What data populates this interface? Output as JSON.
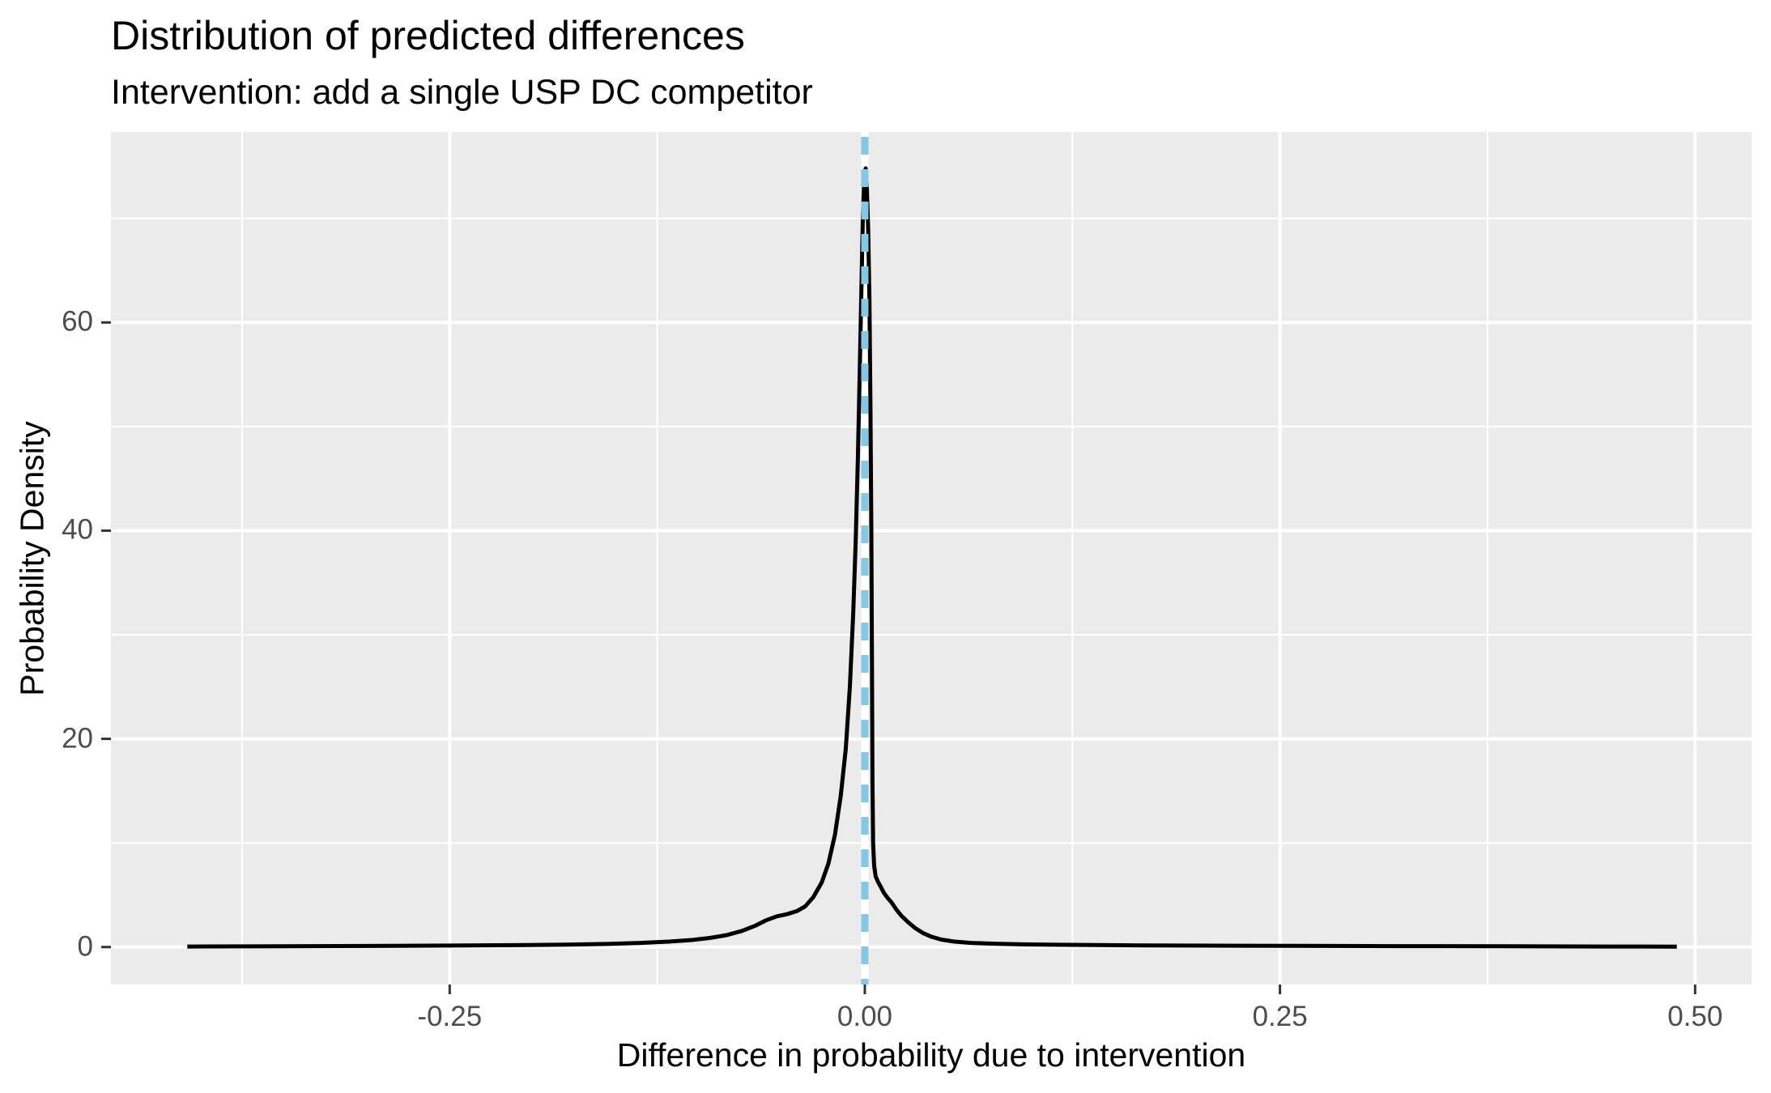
{
  "header": {
    "title": "Distribution of predicted differences",
    "subtitle": "Intervention: add a single USP DC competitor"
  },
  "chart_data": {
    "type": "line",
    "subtype": "density-curve",
    "title": "Distribution of predicted differences",
    "subtitle": "Intervention: add a single USP DC competitor",
    "xlabel": "Difference in probability due to intervention",
    "ylabel": "Probability Density",
    "xlim": [
      -0.454,
      0.534
    ],
    "ylim": [
      -3.6,
      78.3
    ],
    "grid": {
      "major": true,
      "minor": true
    },
    "legend": "none",
    "x_ticks": [
      {
        "value": -0.25,
        "label": "-0.25"
      },
      {
        "value": 0.0,
        "label": "0.00"
      },
      {
        "value": 0.25,
        "label": "0.25"
      },
      {
        "value": 0.5,
        "label": "0.50"
      }
    ],
    "y_ticks": [
      {
        "value": 0,
        "label": "0"
      },
      {
        "value": 20,
        "label": "20"
      },
      {
        "value": 40,
        "label": "40"
      },
      {
        "value": 60,
        "label": "60"
      }
    ],
    "x_minor_ticks": [
      -0.375,
      -0.125,
      0.125,
      0.375
    ],
    "y_minor_ticks": [
      10,
      30,
      50,
      70
    ],
    "vline": {
      "x": 0,
      "linetype": "dashed",
      "color": "#85C8E4",
      "underlay_color": "#FFFFFF"
    },
    "series": [
      {
        "name": "predicted-difference-density",
        "color": "#000000",
        "points": [
          [
            -0.408,
            0.05
          ],
          [
            -0.35,
            0.07
          ],
          [
            -0.3,
            0.1
          ],
          [
            -0.25,
            0.14
          ],
          [
            -0.21,
            0.18
          ],
          [
            -0.18,
            0.23
          ],
          [
            -0.155,
            0.3
          ],
          [
            -0.135,
            0.4
          ],
          [
            -0.118,
            0.52
          ],
          [
            -0.104,
            0.68
          ],
          [
            -0.093,
            0.88
          ],
          [
            -0.083,
            1.15
          ],
          [
            -0.074,
            1.55
          ],
          [
            -0.066,
            2.05
          ],
          [
            -0.059,
            2.6
          ],
          [
            -0.053,
            2.95
          ],
          [
            -0.047,
            3.15
          ],
          [
            -0.041,
            3.45
          ],
          [
            -0.036,
            3.9
          ],
          [
            -0.031,
            4.8
          ],
          [
            -0.026,
            6.2
          ],
          [
            -0.022,
            8.0
          ],
          [
            -0.018,
            10.8
          ],
          [
            -0.0145,
            14.5
          ],
          [
            -0.0115,
            19.0
          ],
          [
            -0.009,
            25.0
          ],
          [
            -0.007,
            32.0
          ],
          [
            -0.0055,
            39.0
          ],
          [
            -0.0042,
            47.0
          ],
          [
            -0.0031,
            55.0
          ],
          [
            -0.0021,
            63.0
          ],
          [
            -0.0012,
            70.0
          ],
          [
            -0.0003,
            74.3
          ],
          [
            0.0005,
            74.8
          ],
          [
            0.0012,
            73.0
          ],
          [
            0.002,
            69.0
          ],
          [
            0.0028,
            62.0
          ],
          [
            0.0034,
            52.0
          ],
          [
            0.0039,
            40.0
          ],
          [
            0.0043,
            27.0
          ],
          [
            0.0046,
            16.0
          ],
          [
            0.005,
            10.0
          ],
          [
            0.0056,
            7.8
          ],
          [
            0.0065,
            6.8
          ],
          [
            0.0078,
            6.3
          ],
          [
            0.0095,
            5.8
          ],
          [
            0.0115,
            5.2
          ],
          [
            0.0135,
            4.75
          ],
          [
            0.016,
            4.3
          ],
          [
            0.019,
            3.6
          ],
          [
            0.022,
            3.0
          ],
          [
            0.026,
            2.4
          ],
          [
            0.03,
            1.85
          ],
          [
            0.035,
            1.35
          ],
          [
            0.04,
            1.0
          ],
          [
            0.046,
            0.72
          ],
          [
            0.054,
            0.52
          ],
          [
            0.064,
            0.4
          ],
          [
            0.078,
            0.32
          ],
          [
            0.095,
            0.26
          ],
          [
            0.115,
            0.22
          ],
          [
            0.14,
            0.19
          ],
          [
            0.17,
            0.16
          ],
          [
            0.21,
            0.13
          ],
          [
            0.26,
            0.11
          ],
          [
            0.32,
            0.09
          ],
          [
            0.39,
            0.07
          ],
          [
            0.45,
            0.05
          ],
          [
            0.489,
            0.04
          ]
        ]
      }
    ],
    "colors": {
      "panel_bg": "#EBEBEB",
      "grid": "#FFFFFF",
      "axis_tick": "#333333",
      "tick_label": "#4D4D4D",
      "text": "#000000",
      "curve": "#000000",
      "vline": "#85C8E4"
    }
  }
}
